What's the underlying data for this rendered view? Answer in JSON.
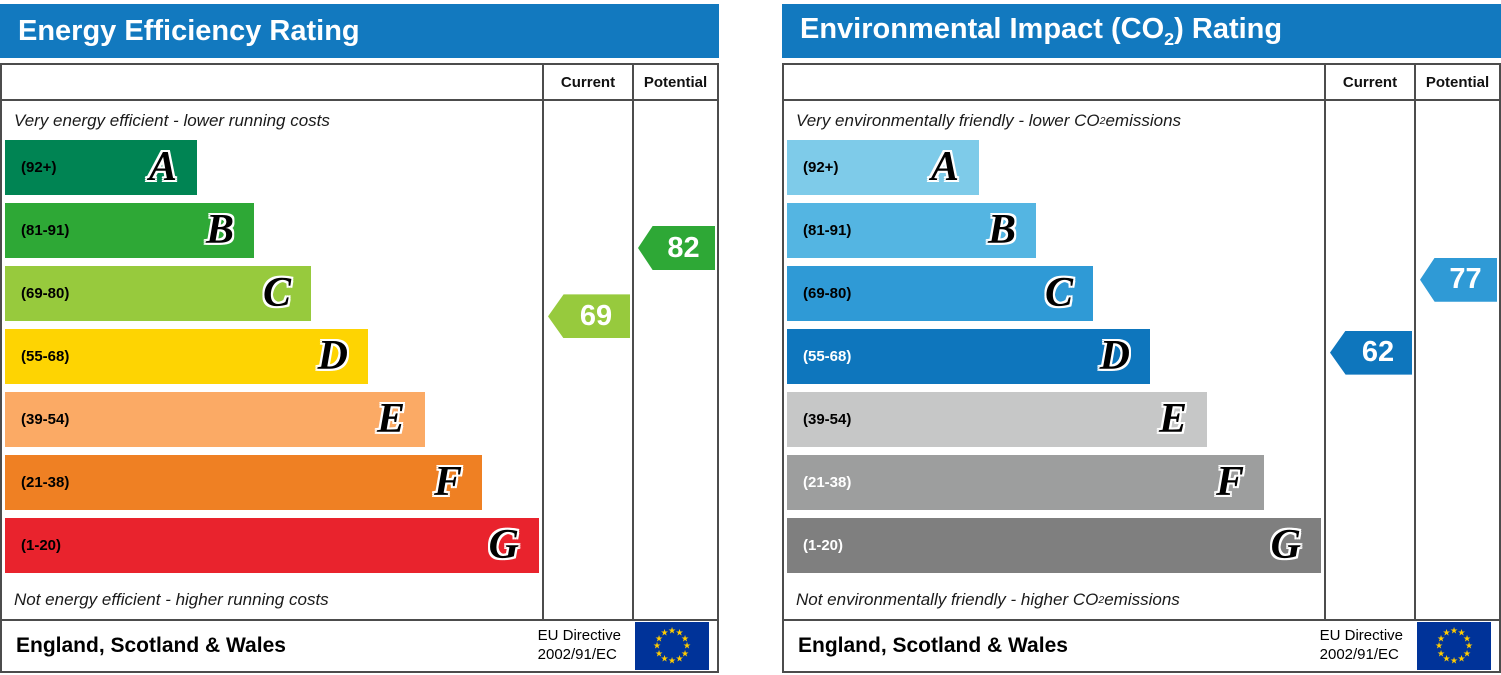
{
  "chart_data": [
    {
      "type": "bar",
      "title": "Energy Efficiency Rating",
      "title_parts": [
        {
          "t": "Energy Efficiency Rating"
        }
      ],
      "columns": {
        "current": "Current",
        "potential": "Potential"
      },
      "top_caption_parts": [
        {
          "t": "Very energy efficient - lower running costs"
        }
      ],
      "bottom_caption_parts": [
        {
          "t": "Not energy efficient - higher running costs"
        }
      ],
      "categories": [
        "A",
        "B",
        "C",
        "D",
        "E",
        "F",
        "G"
      ],
      "bands": [
        {
          "letter": "A",
          "label": "(92+)",
          "lo": 92,
          "hi": 100,
          "color": "#008453",
          "text_color": "#000000"
        },
        {
          "letter": "B",
          "label": "(81-91)",
          "lo": 81,
          "hi": 91,
          "color": "#2ea836",
          "text_color": "#000000"
        },
        {
          "letter": "C",
          "label": "(69-80)",
          "lo": 69,
          "hi": 80,
          "color": "#97ca3d",
          "text_color": "#000000"
        },
        {
          "letter": "D",
          "label": "(55-68)",
          "lo": 55,
          "hi": 68,
          "color": "#fed402",
          "text_color": "#000000"
        },
        {
          "letter": "E",
          "label": "(39-54)",
          "lo": 39,
          "hi": 54,
          "color": "#fbaa65",
          "text_color": "#000000"
        },
        {
          "letter": "F",
          "label": "(21-38)",
          "lo": 21,
          "hi": 38,
          "color": "#ef8023",
          "text_color": "#000000"
        },
        {
          "letter": "G",
          "label": "(1-20)",
          "lo": 1,
          "hi": 20,
          "color": "#e9232d",
          "text_color": "#000000"
        }
      ],
      "current": {
        "value": 69,
        "color": "#97ca3d"
      },
      "potential": {
        "value": 82,
        "color": "#2ea836"
      },
      "footer": {
        "region": "England, Scotland & Wales",
        "directive": [
          "EU Directive",
          "2002/91/EC"
        ]
      },
      "accent_color": "#1279bf"
    },
    {
      "type": "bar",
      "title": "Environmental Impact (CO2) Rating",
      "title_parts": [
        {
          "t": "Environmental Impact (CO"
        },
        {
          "t": "2",
          "sub": true
        },
        {
          "t": ") Rating"
        }
      ],
      "columns": {
        "current": "Current",
        "potential": "Potential"
      },
      "top_caption_parts": [
        {
          "t": "Very environmentally friendly - lower CO"
        },
        {
          "t": "2",
          "sub": true
        },
        {
          "t": " emissions"
        }
      ],
      "bottom_caption_parts": [
        {
          "t": "Not environmentally friendly - higher CO"
        },
        {
          "t": "2",
          "sub": true
        },
        {
          "t": " emissions"
        }
      ],
      "categories": [
        "A",
        "B",
        "C",
        "D",
        "E",
        "F",
        "G"
      ],
      "bands": [
        {
          "letter": "A",
          "label": "(92+)",
          "lo": 92,
          "hi": 100,
          "color": "#7ecbe9",
          "text_color": "#000000"
        },
        {
          "letter": "B",
          "label": "(81-91)",
          "lo": 81,
          "hi": 91,
          "color": "#54b5e2",
          "text_color": "#000000"
        },
        {
          "letter": "C",
          "label": "(69-80)",
          "lo": 69,
          "hi": 80,
          "color": "#2f9ad6",
          "text_color": "#000000"
        },
        {
          "letter": "D",
          "label": "(55-68)",
          "lo": 55,
          "hi": 68,
          "color": "#0e76bd",
          "text_color": "#ffffff"
        },
        {
          "letter": "E",
          "label": "(39-54)",
          "lo": 39,
          "hi": 54,
          "color": "#c6c7c7",
          "text_color": "#000000"
        },
        {
          "letter": "F",
          "label": "(21-38)",
          "lo": 21,
          "hi": 38,
          "color": "#9d9e9e",
          "text_color": "#ffffff"
        },
        {
          "letter": "G",
          "label": "(1-20)",
          "lo": 1,
          "hi": 20,
          "color": "#7f7f7f",
          "text_color": "#ffffff"
        }
      ],
      "current": {
        "value": 62,
        "color": "#0e76bd"
      },
      "potential": {
        "value": 77,
        "color": "#2f9ad6"
      },
      "footer": {
        "region": "England, Scotland & Wales",
        "directive": [
          "EU Directive",
          "2002/91/EC"
        ]
      },
      "accent_color": "#1279bf"
    }
  ],
  "eu_flag": {
    "background": "#003399",
    "star_color": "#ffcc00",
    "star_count": 12
  }
}
